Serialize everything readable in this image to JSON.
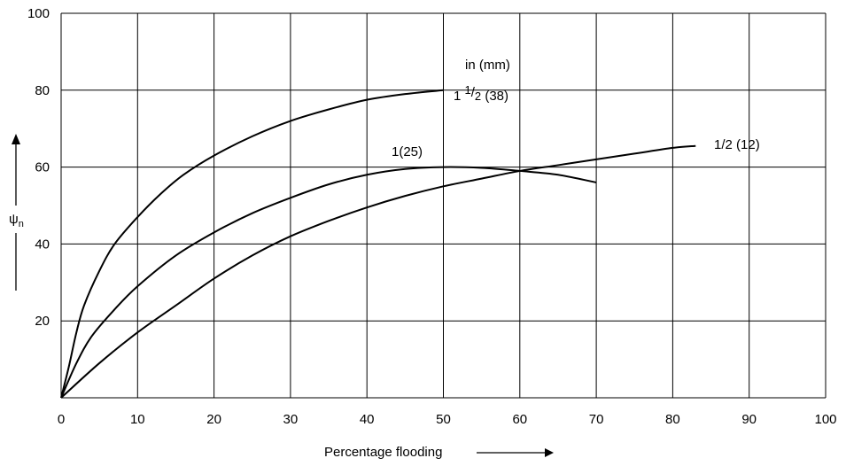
{
  "chart_data": {
    "type": "line",
    "title": "",
    "xlabel": "Percentage flooding",
    "ylabel": "ψ",
    "ylabel_subscript": "n",
    "units_note": "in (mm)",
    "xlim": [
      0,
      100
    ],
    "ylim": [
      0,
      100
    ],
    "x_ticks": [
      0,
      10,
      20,
      30,
      40,
      50,
      60,
      70,
      80,
      90,
      100
    ],
    "y_ticks": [
      20,
      40,
      60,
      80,
      100
    ],
    "grid": true,
    "series": [
      {
        "name": "1 1/2 (38)",
        "label_parts": [
          "1 ",
          "1",
          "/",
          "2",
          " (38)"
        ],
        "points": [
          [
            0,
            0
          ],
          [
            1,
            8
          ],
          [
            2,
            17
          ],
          [
            3,
            24
          ],
          [
            5,
            33
          ],
          [
            7,
            40
          ],
          [
            10,
            47
          ],
          [
            13,
            53
          ],
          [
            16,
            58
          ],
          [
            20,
            63
          ],
          [
            25,
            68
          ],
          [
            30,
            72
          ],
          [
            35,
            75
          ],
          [
            40,
            77.5
          ],
          [
            45,
            79
          ],
          [
            50,
            80
          ]
        ]
      },
      {
        "name": "1(25)",
        "points": [
          [
            0,
            0
          ],
          [
            2,
            9
          ],
          [
            4,
            16
          ],
          [
            7,
            23
          ],
          [
            10,
            29
          ],
          [
            15,
            37
          ],
          [
            20,
            43
          ],
          [
            25,
            48
          ],
          [
            30,
            52
          ],
          [
            35,
            55.5
          ],
          [
            40,
            58
          ],
          [
            45,
            59.5
          ],
          [
            50,
            60
          ],
          [
            55,
            59.8
          ],
          [
            60,
            59
          ],
          [
            65,
            58
          ],
          [
            70,
            56
          ]
        ]
      },
      {
        "name": "1/2 (12)",
        "points": [
          [
            0,
            0
          ],
          [
            5,
            9
          ],
          [
            10,
            17
          ],
          [
            15,
            24
          ],
          [
            20,
            31
          ],
          [
            25,
            37
          ],
          [
            30,
            42
          ],
          [
            35,
            46
          ],
          [
            40,
            49.5
          ],
          [
            45,
            52.5
          ],
          [
            50,
            55
          ],
          [
            55,
            57
          ],
          [
            60,
            59
          ],
          [
            65,
            60.5
          ],
          [
            70,
            62
          ],
          [
            75,
            63.5
          ],
          [
            80,
            65
          ],
          [
            83,
            65.5
          ]
        ]
      }
    ]
  }
}
